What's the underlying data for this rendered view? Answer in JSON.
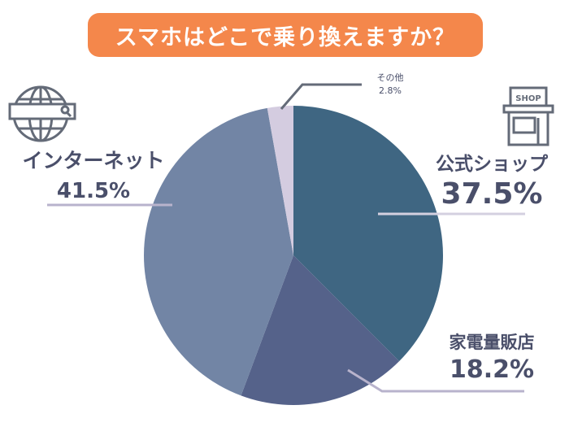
{
  "chart_data": {
    "type": "pie",
    "title": "スマホはどこで乗り換えますか？",
    "slices": [
      {
        "label": "公式ショップ",
        "value": 37.5,
        "value_label": "37.5%",
        "color": "#3f6682"
      },
      {
        "label": "家電量販店",
        "value": 18.2,
        "value_label": "18.2%",
        "color": "#55628a"
      },
      {
        "label": "インターネット",
        "value": 41.5,
        "value_label": "41.5%",
        "color": "#7285a5"
      },
      {
        "label": "その他",
        "value": 2.8,
        "value_label": "2.8%",
        "color": "#d4cce0"
      }
    ],
    "start": "top",
    "direction": "clockwise"
  },
  "icons": {
    "shop_sign": "SHOP"
  },
  "colors": {
    "title_bg": "#f4874b",
    "leader": "#b8b3cc"
  }
}
